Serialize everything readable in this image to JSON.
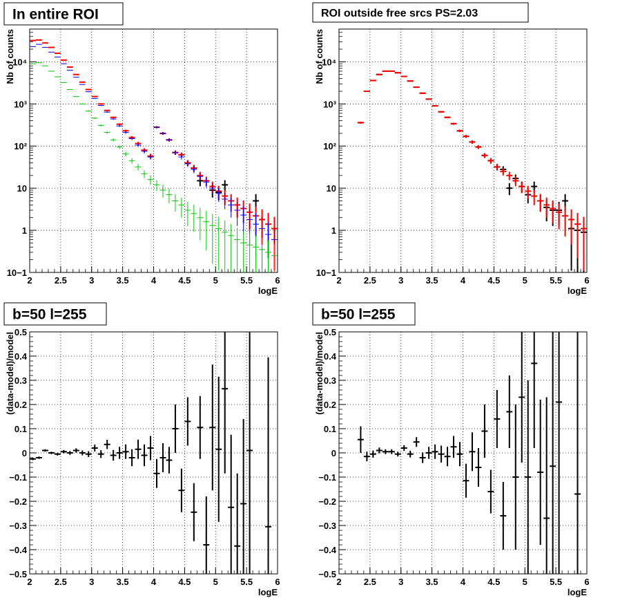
{
  "chart_data": [
    {
      "type": "scatter",
      "title": "In entire ROI",
      "xlabel": "logE",
      "ylabel": "Nb of counts",
      "xlim": [
        2,
        6
      ],
      "ylim": [
        0.1,
        60000
      ],
      "yscale": "log",
      "grid": true,
      "xticks": [
        "2",
        "2.5",
        "3",
        "3.5",
        "4",
        "4.5",
        "5",
        "5.5",
        "6"
      ],
      "yticks": [
        "10−1",
        "1",
        "10",
        "10²",
        "10³",
        "10⁴"
      ],
      "x": [
        2.05,
        2.15,
        2.25,
        2.35,
        2.45,
        2.55,
        2.65,
        2.75,
        2.85,
        2.95,
        3.05,
        3.15,
        3.25,
        3.35,
        3.45,
        3.55,
        3.65,
        3.75,
        3.85,
        3.95,
        4.05,
        4.15,
        4.25,
        4.35,
        4.45,
        4.55,
        4.65,
        4.75,
        4.85,
        4.95,
        5.05,
        5.15,
        5.25,
        5.35,
        5.45,
        5.55,
        5.65,
        5.75,
        5.85,
        5.95
      ],
      "series": [
        {
          "color": "#000000",
          "values": [
            null,
            null,
            null,
            null,
            null,
            null,
            null,
            null,
            null,
            null,
            null,
            null,
            null,
            null,
            null,
            null,
            null,
            null,
            null,
            null,
            280,
            200,
            140,
            70,
            62,
            40,
            30,
            15,
            null,
            9,
            8,
            12,
            null,
            null,
            null,
            null,
            5,
            null,
            null,
            null
          ]
        },
        {
          "color": "#ff0000",
          "values": [
            32000,
            33000,
            28000,
            22000,
            16000,
            11000,
            7500,
            5000,
            3300,
            2200,
            1500,
            1000,
            700,
            480,
            330,
            230,
            160,
            115,
            80,
            58,
            280,
            200,
            140,
            70,
            62,
            40,
            30,
            20,
            15,
            11,
            8.5,
            6.5,
            5,
            4,
            3.3,
            2.7,
            2.2,
            1.8,
            1.4,
            1.1
          ]
        },
        {
          "color": "#0000ff",
          "values": [
            23000,
            26000,
            22000,
            17000,
            13000,
            9000,
            6300,
            4300,
            2900,
            1950,
            1350,
            920,
            640,
            440,
            300,
            210,
            150,
            105,
            75,
            55,
            280,
            200,
            140,
            70,
            55,
            38,
            28,
            19,
            14,
            10,
            7.5,
            5.5,
            4,
            3,
            2.3,
            1.8,
            1.4,
            1.1,
            0.8,
            0.6
          ]
        },
        {
          "color": "#00c800",
          "values": [
            9000,
            9500,
            8000,
            6000,
            4400,
            3200,
            2200,
            1500,
            1000,
            680,
            460,
            310,
            210,
            140,
            95,
            65,
            45,
            32,
            22,
            16,
            12,
            9,
            7,
            5,
            4,
            3,
            2.5,
            2,
            1.6,
            1.3,
            1.1,
            0.9,
            0.75,
            0.6,
            0.5,
            0.45,
            0.4,
            0.35,
            0.3,
            0.25
          ]
        }
      ]
    },
    {
      "type": "scatter",
      "title": "ROI outside free srcs PS=2.03",
      "xlabel": "logE",
      "ylabel": "Nb of counts",
      "xlim": [
        2,
        6
      ],
      "ylim": [
        0.1,
        60000
      ],
      "yscale": "log",
      "grid": true,
      "xticks": [
        "2",
        "2.5",
        "3",
        "3.5",
        "4",
        "4.5",
        "5",
        "5.5",
        "6"
      ],
      "yticks": [
        "10−1",
        "1",
        "10",
        "10²",
        "10³",
        "10⁴"
      ],
      "x": [
        2.35,
        2.45,
        2.55,
        2.65,
        2.75,
        2.85,
        2.95,
        3.05,
        3.15,
        3.25,
        3.35,
        3.45,
        3.55,
        3.65,
        3.75,
        3.85,
        3.95,
        4.05,
        4.15,
        4.25,
        4.35,
        4.45,
        4.55,
        4.65,
        4.75,
        4.85,
        4.95,
        5.05,
        5.15,
        5.25,
        5.35,
        5.45,
        5.55,
        5.65,
        5.75,
        5.85,
        5.95
      ],
      "series": [
        {
          "color": "#000000",
          "values": [
            360,
            2000,
            3600,
            5000,
            6000,
            6000,
            5500,
            4500,
            3500,
            2500,
            1800,
            1300,
            900,
            650,
            480,
            340,
            230,
            170,
            125,
            95,
            60,
            45,
            32,
            28,
            10,
            17,
            11,
            7,
            11,
            5,
            3.5,
            3,
            3,
            5,
            1.1,
            1,
            0.9
          ]
        },
        {
          "color": "#ff0000",
          "values": [
            360,
            2000,
            3600,
            5000,
            6000,
            6000,
            5500,
            4500,
            3500,
            2500,
            1800,
            1300,
            900,
            650,
            480,
            340,
            230,
            170,
            125,
            95,
            60,
            45,
            32,
            25,
            20,
            15,
            11,
            8.5,
            6.5,
            5,
            4,
            3.3,
            2.7,
            2.2,
            1.8,
            1.4,
            1.1
          ]
        }
      ]
    },
    {
      "type": "scatter",
      "title": "b=50 l=255",
      "xlabel": "logE",
      "ylabel": "(data-model)/model",
      "xlim": [
        2,
        6
      ],
      "ylim": [
        -0.5,
        0.5
      ],
      "grid": true,
      "xticks": [
        "2",
        "2.5",
        "3",
        "3.5",
        "4",
        "4.5",
        "5",
        "5.5",
        "6"
      ],
      "yticks": [
        "−0.5",
        "−0.4",
        "−0.3",
        "−0.2",
        "−0.1",
        "0",
        "0.1",
        "0.2",
        "0.3",
        "0.4",
        "0.5"
      ],
      "series": [
        {
          "color": "#000000",
          "x": [
            2.05,
            2.15,
            2.25,
            2.35,
            2.45,
            2.55,
            2.65,
            2.75,
            2.85,
            2.95,
            3.05,
            3.15,
            3.25,
            3.35,
            3.45,
            3.55,
            3.65,
            3.75,
            3.85,
            3.95,
            4.05,
            4.15,
            4.25,
            4.35,
            4.45,
            4.55,
            4.65,
            4.75,
            4.85,
            4.95,
            5.05,
            5.15,
            5.25,
            5.35,
            5.45,
            5.55,
            5.85
          ],
          "values": [
            -0.025,
            -0.02,
            0.01,
            0,
            -0.005,
            0.005,
            0,
            0.01,
            0,
            -0.005,
            0.02,
            -0.005,
            0.035,
            -0.01,
            0,
            0.005,
            -0.02,
            0.015,
            -0.01,
            0.02,
            -0.085,
            -0.02,
            -0.03,
            0.1,
            -0.155,
            0.13,
            -0.245,
            0.105,
            -0.38,
            0.105,
            0.015,
            0.265,
            -0.225,
            -0.385,
            -0.21,
            0.01,
            -0.305
          ],
          "err": [
            0.005,
            0.005,
            0.005,
            0.005,
            0.006,
            0.007,
            0.008,
            0.009,
            0.01,
            0.012,
            0.014,
            0.016,
            0.019,
            0.022,
            0.025,
            0.03,
            0.035,
            0.04,
            0.045,
            0.05,
            0.06,
            0.06,
            0.055,
            0.1,
            0.09,
            0.1,
            0.12,
            0.13,
            0.2,
            0.26,
            0.3,
            0.35,
            0.3,
            0.3,
            0.35,
            0.6,
            0.7
          ]
        }
      ]
    },
    {
      "type": "scatter",
      "title": "b=50 l=255",
      "xlabel": "logE",
      "ylabel": "(data-model)/model",
      "xlim": [
        2,
        6
      ],
      "ylim": [
        -0.5,
        0.5
      ],
      "grid": true,
      "xticks": [
        "2",
        "2.5",
        "3",
        "3.5",
        "4",
        "4.5",
        "5",
        "5.5",
        "6"
      ],
      "yticks": [
        "−0.5",
        "−0.4",
        "−0.3",
        "−0.2",
        "−0.1",
        "0",
        "0.1",
        "0.2",
        "0.3",
        "0.4",
        "0.5"
      ],
      "series": [
        {
          "color": "#000000",
          "x": [
            2.35,
            2.45,
            2.55,
            2.65,
            2.75,
            2.85,
            2.95,
            3.05,
            3.15,
            3.25,
            3.35,
            3.45,
            3.55,
            3.65,
            3.75,
            3.85,
            3.95,
            4.05,
            4.15,
            4.25,
            4.35,
            4.45,
            4.55,
            4.65,
            4.75,
            4.85,
            4.95,
            5.05,
            5.15,
            5.25,
            5.35,
            5.45,
            5.55,
            5.85
          ],
          "values": [
            0.055,
            -0.015,
            -0.005,
            0.01,
            0.005,
            0.005,
            -0.005,
            0.02,
            -0.005,
            0.045,
            -0.02,
            0,
            0.005,
            -0.005,
            -0.015,
            0.025,
            -0.005,
            -0.115,
            0.005,
            -0.06,
            0.09,
            -0.16,
            0.14,
            -0.26,
            0.17,
            -0.1,
            0.23,
            -0.1,
            0.37,
            -0.08,
            -0.27,
            -0.055,
            0.21,
            -0.17
          ],
          "err": [
            0.055,
            0.02,
            0.015,
            0.012,
            0.01,
            0.01,
            0.01,
            0.012,
            0.014,
            0.02,
            0.022,
            0.025,
            0.03,
            0.035,
            0.04,
            0.045,
            0.05,
            0.07,
            0.08,
            0.08,
            0.11,
            0.09,
            0.12,
            0.14,
            0.15,
            0.3,
            0.27,
            0.4,
            0.35,
            0.3,
            0.5,
            0.6,
            0.8,
            0.9
          ]
        }
      ]
    }
  ]
}
